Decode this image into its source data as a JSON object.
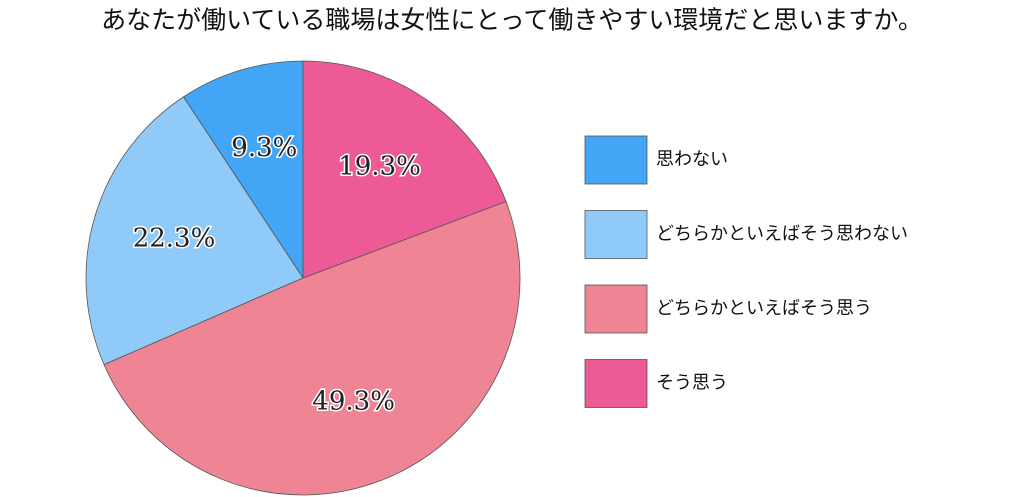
{
  "chart_data": {
    "type": "pie",
    "title": "あなたが働いている職場は女性にとって働きやすい環境だと思いますか。",
    "categories": [
      "思わない",
      "どちらかといえばそう思わない",
      "どちらかといえばそう思う",
      "そう思う"
    ],
    "values": [
      9.3,
      22.3,
      49.3,
      19.3
    ],
    "value_labels": [
      "9.3%",
      "22.3%",
      "49.3%",
      "19.3%"
    ],
    "colors": [
      "#42a5f5",
      "#90caf9",
      "#ee8494",
      "#ec5b95"
    ],
    "legend": "right"
  }
}
